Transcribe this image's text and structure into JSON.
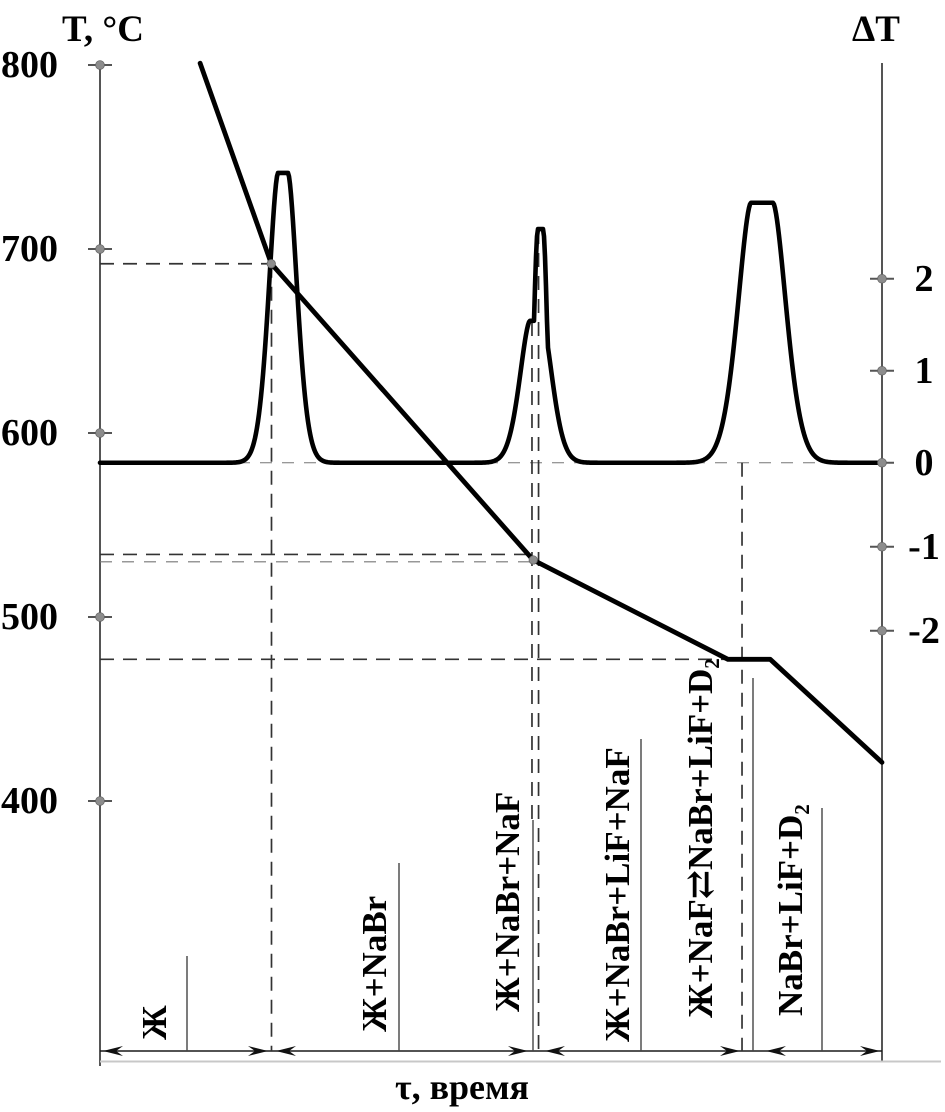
{
  "header": {
    "left_axis_title": "T, °C",
    "right_axis_title": "ΔT"
  },
  "x_axis": {
    "label": "τ, время"
  },
  "left_axis": {
    "ticks": [
      "800",
      "700",
      "600",
      "500",
      "400"
    ]
  },
  "right_axis": {
    "ticks": [
      "2",
      "1",
      "0",
      "-1",
      "-2"
    ]
  },
  "regions": [
    {
      "label": "Ж"
    },
    {
      "label": "Ж+NaBr"
    },
    {
      "label": "Ж+NaBr+NaF"
    },
    {
      "label": "Ж+NaBr+LiF+NaF"
    },
    {
      "label": "Ж+NaF⇄NaBr+LiF+D₂"
    },
    {
      "label": "NaBr+LiF+D₂"
    }
  ],
  "chart_data": {
    "type": "line",
    "title": "Thermal analysis: cooling curve with DTA trace",
    "xlabel": "τ, время",
    "ylabel_left": "T, °C",
    "ylabel_right": "ΔT",
    "ylim_left": [
      400,
      800
    ],
    "left_ticks_C": [
      800,
      700,
      600,
      500,
      400
    ],
    "right_ticks_dT": [
      2,
      1,
      0,
      -1,
      -2
    ],
    "x_units": "relative time 0-1 (axis unlabeled)",
    "grid": "off",
    "legend": "none",
    "cooling_curve_t_T": [
      [
        0.128,
        801
      ],
      [
        0.219,
        692
      ],
      [
        0.554,
        531
      ],
      [
        0.803,
        477
      ],
      [
        0.857,
        477
      ],
      [
        1.0,
        421
      ]
    ],
    "transition_temperatures_C": [
      692,
      534,
      530,
      477
    ],
    "dta_baseline_dT": 0,
    "dta_peaks": [
      {
        "name": "peak-1",
        "t_center": 0.234,
        "height_dT": 3.15,
        "top_halfwidth_t": 0.0064,
        "sigma_t": 0.0115,
        "exp": 1.7
      },
      {
        "name": "peak-2-shoulder",
        "t_center": 0.5575,
        "height_dT": 1.543,
        "top_halfwidth_t": 0.0077,
        "sigma_t": 0.0128,
        "exp": 1.7
      },
      {
        "name": "peak-2-spike",
        "t_center": 0.5633,
        "height_dT": 2.54,
        "top_halfwidth_t": 0.0032,
        "sigma_t": 0.0051,
        "exp": 2.0
      },
      {
        "name": "peak-3",
        "t_center": 0.8465,
        "height_dT": 2.826,
        "top_halfwidth_t": 0.0141,
        "sigma_t": 0.0166,
        "exp": 1.7
      }
    ],
    "guide_times_t": [
      0.2193,
      0.5524,
      0.5608,
      0.821
    ],
    "guide_temperatures_C": [
      692,
      534,
      530,
      477
    ],
    "bend_markers_t_T": [
      [
        0.219,
        692
      ],
      [
        0.554,
        531
      ]
    ]
  }
}
